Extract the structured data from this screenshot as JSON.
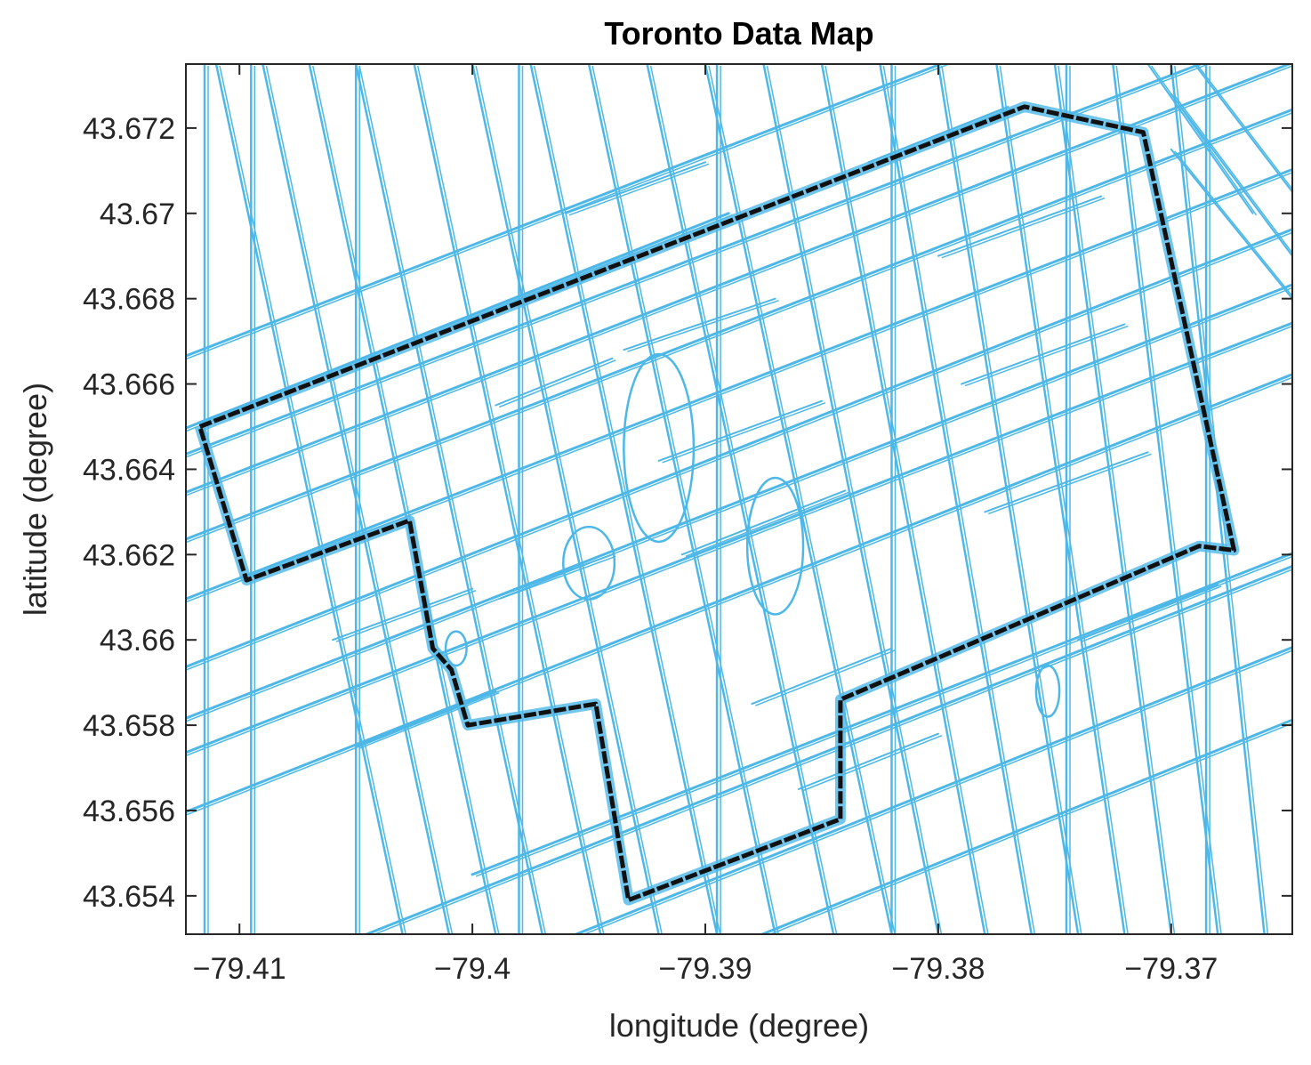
{
  "map": {
    "title": "Toronto Data Map",
    "xlabel": "longitude (degree)",
    "ylabel": "latitude (degree)",
    "xlim": [
      -79.4123,
      -79.3648
    ],
    "ylim": [
      43.6531,
      43.6735
    ],
    "x_ticks": [
      {
        "value": -79.41,
        "label": "−79.41"
      },
      {
        "value": -79.4,
        "label": "−79.4"
      },
      {
        "value": -79.39,
        "label": "−79.39"
      },
      {
        "value": -79.38,
        "label": "−79.38"
      },
      {
        "value": -79.37,
        "label": "−79.37"
      }
    ],
    "y_ticks": [
      {
        "value": 43.654,
        "label": "43.654"
      },
      {
        "value": 43.656,
        "label": "43.656"
      },
      {
        "value": 43.658,
        "label": "43.658"
      },
      {
        "value": 43.66,
        "label": "43.66"
      },
      {
        "value": 43.662,
        "label": "43.662"
      },
      {
        "value": 43.664,
        "label": "43.664"
      },
      {
        "value": 43.666,
        "label": "43.666"
      },
      {
        "value": 43.668,
        "label": "43.668"
      },
      {
        "value": 43.67,
        "label": "43.67"
      },
      {
        "value": 43.672,
        "label": "43.672"
      }
    ],
    "colors": {
      "road": "#4db8e8",
      "boundary": "#111111",
      "axis": "#262626",
      "background": "#ffffff"
    },
    "boundary_path": [
      [
        -79.4117,
        43.665
      ],
      [
        -79.3763,
        43.6725
      ],
      [
        -79.3712,
        43.6719
      ],
      [
        -79.3673,
        43.6621
      ],
      [
        -79.3688,
        43.6622
      ],
      [
        -79.3842,
        43.6586
      ],
      [
        -79.3842,
        43.6558
      ],
      [
        -79.3933,
        43.6539
      ],
      [
        -79.3947,
        43.6585
      ],
      [
        -79.4002,
        43.658
      ],
      [
        -79.4009,
        43.6593
      ],
      [
        -79.4017,
        43.6598
      ],
      [
        -79.4027,
        43.6628
      ],
      [
        -79.4097,
        43.6614
      ],
      [
        -79.4117,
        43.665
      ]
    ],
    "streets_long": [
      [
        [
          -79.414,
          43.6556
        ],
        [
          -79.364,
          43.6664
        ]
      ],
      [
        [
          -79.414,
          43.6606
        ],
        [
          -79.364,
          43.6712
        ]
      ],
      [
        [
          -79.414,
          43.6631
        ],
        [
          -79.364,
          43.6737
        ]
      ],
      [
        [
          -79.414,
          43.6663
        ],
        [
          -79.369,
          43.6758
        ]
      ],
      [
        [
          -79.414,
          43.659
        ],
        [
          -79.364,
          43.6698
        ]
      ],
      [
        [
          -79.414,
          43.662
        ],
        [
          -79.364,
          43.6726
        ]
      ],
      [
        [
          -79.414,
          43.6646
        ],
        [
          -79.389,
          43.67
        ]
      ],
      [
        [
          -79.405,
          43.653
        ],
        [
          -79.364,
          43.6619
        ]
      ],
      [
        [
          -79.396,
          43.653
        ],
        [
          -79.364,
          43.66
        ]
      ],
      [
        [
          -79.388,
          43.653
        ],
        [
          -79.364,
          43.6583
        ]
      ],
      [
        [
          -79.414,
          43.6578
        ],
        [
          -79.364,
          43.6685
        ]
      ],
      [
        [
          -79.414,
          43.657
        ],
        [
          -79.364,
          43.6676
        ]
      ],
      [
        [
          -79.4,
          43.6545
        ],
        [
          -79.364,
          43.6622
        ]
      ],
      [
        [
          -79.414,
          43.664
        ],
        [
          -79.364,
          43.6745
        ]
      ]
    ],
    "streets_cross": [
      [
        [
          -79.411,
          43.6735
        ],
        [
          -79.403,
          43.6531
        ]
      ],
      [
        [
          -79.409,
          43.6735
        ],
        [
          -79.401,
          43.6531
        ]
      ],
      [
        [
          -79.407,
          43.6735
        ],
        [
          -79.399,
          43.6531
        ]
      ],
      [
        [
          -79.405,
          43.6735
        ],
        [
          -79.397,
          43.6531
        ]
      ],
      [
        [
          -79.4025,
          43.6735
        ],
        [
          -79.3945,
          43.6531
        ]
      ],
      [
        [
          -79.4,
          43.6735
        ],
        [
          -79.392,
          43.6531
        ]
      ],
      [
        [
          -79.3975,
          43.6735
        ],
        [
          -79.3895,
          43.6531
        ]
      ],
      [
        [
          -79.395,
          43.6735
        ],
        [
          -79.387,
          43.6531
        ]
      ],
      [
        [
          -79.3925,
          43.6735
        ],
        [
          -79.3845,
          43.6531
        ]
      ],
      [
        [
          -79.39,
          43.6735
        ],
        [
          -79.382,
          43.6531
        ]
      ],
      [
        [
          -79.3875,
          43.6735
        ],
        [
          -79.38,
          43.6531
        ]
      ],
      [
        [
          -79.385,
          43.6735
        ],
        [
          -79.378,
          43.6531
        ]
      ],
      [
        [
          -79.3825,
          43.6735
        ],
        [
          -79.376,
          43.6531
        ]
      ],
      [
        [
          -79.38,
          43.6735
        ],
        [
          -79.374,
          43.6531
        ]
      ],
      [
        [
          -79.3775,
          43.6735
        ],
        [
          -79.372,
          43.6531
        ]
      ],
      [
        [
          -79.375,
          43.6735
        ],
        [
          -79.37,
          43.6531
        ]
      ],
      [
        [
          -79.3725,
          43.6735
        ],
        [
          -79.368,
          43.6531
        ]
      ],
      [
        [
          -79.37,
          43.6735
        ],
        [
          -79.366,
          43.6531
        ]
      ],
      [
        [
          -79.4115,
          43.6735
        ],
        [
          -79.4115,
          43.6531
        ]
      ],
      [
        [
          -79.4095,
          43.6735
        ],
        [
          -79.4095,
          43.6531
        ]
      ],
      [
        [
          -79.405,
          43.6735
        ],
        [
          -79.405,
          43.6531
        ]
      ],
      [
        [
          -79.398,
          43.6735
        ],
        [
          -79.398,
          43.6531
        ]
      ],
      [
        [
          -79.3895,
          43.6735
        ],
        [
          -79.3895,
          43.6531
        ]
      ],
      [
        [
          -79.382,
          43.6735
        ],
        [
          -79.382,
          43.6531
        ]
      ],
      [
        [
          -79.3745,
          43.6735
        ],
        [
          -79.3745,
          43.6531
        ]
      ],
      [
        [
          -79.3685,
          43.6735
        ],
        [
          -79.3685,
          43.6531
        ]
      ]
    ],
    "streets_local": [
      [
        [
          -79.3935,
          43.6668
        ],
        [
          -79.387,
          43.668
        ]
      ],
      [
        [
          -79.392,
          43.6642
        ],
        [
          -79.385,
          43.6656
        ]
      ],
      [
        [
          -79.391,
          43.662
        ],
        [
          -79.384,
          43.6635
        ]
      ],
      [
        [
          -79.38,
          43.669
        ],
        [
          -79.373,
          43.6704
        ]
      ],
      [
        [
          -79.379,
          43.666
        ],
        [
          -79.372,
          43.6674
        ]
      ],
      [
        [
          -79.378,
          43.663
        ],
        [
          -79.371,
          43.6644
        ]
      ],
      [
        [
          -79.405,
          43.6575
        ],
        [
          -79.399,
          43.6588
        ]
      ],
      [
        [
          -79.406,
          43.66
        ],
        [
          -79.4,
          43.6612
        ]
      ],
      [
        [
          -79.386,
          43.6565
        ],
        [
          -79.38,
          43.6578
        ]
      ],
      [
        [
          -79.388,
          43.6585
        ],
        [
          -79.382,
          43.6598
        ]
      ],
      [
        [
          -79.374,
          43.66
        ],
        [
          -79.368,
          43.6613
        ]
      ],
      [
        [
          -79.383,
          43.6712
        ],
        [
          -79.377,
          43.6725
        ]
      ],
      [
        [
          -79.396,
          43.67
        ],
        [
          -79.39,
          43.6712
        ]
      ],
      [
        [
          -79.399,
          43.6655
        ],
        [
          -79.394,
          43.6666
        ]
      ],
      [
        [
          -79.3975,
          43.668
        ],
        [
          -79.3925,
          43.6691
        ]
      ],
      [
        [
          -79.399,
          43.661
        ],
        [
          -79.394,
          43.662
        ]
      ]
    ],
    "streets_east": [
      [
        [
          -79.371,
          43.6735
        ],
        [
          -79.3665,
          43.67
        ]
      ],
      [
        [
          -79.369,
          43.6735
        ],
        [
          -79.3648,
          43.6705
        ]
      ],
      [
        [
          -79.37,
          43.6728
        ],
        [
          -79.3648,
          43.669
        ]
      ],
      [
        [
          -79.37,
          43.6715
        ],
        [
          -79.3648,
          43.668
        ]
      ]
    ],
    "loops": [
      {
        "cx": -79.395,
        "cy": 43.6618,
        "rx": 0.0011,
        "ry": 0.00085
      },
      {
        "cx": -79.4007,
        "cy": 43.6598,
        "rx": 0.00045,
        "ry": 0.0004
      },
      {
        "cx": -79.392,
        "cy": 43.6645,
        "rx": 0.0015,
        "ry": 0.0022
      },
      {
        "cx": -79.387,
        "cy": 43.6622,
        "rx": 0.0012,
        "ry": 0.0016
      },
      {
        "cx": -79.3753,
        "cy": 43.6588,
        "rx": 0.0005,
        "ry": 0.0006
      }
    ]
  }
}
